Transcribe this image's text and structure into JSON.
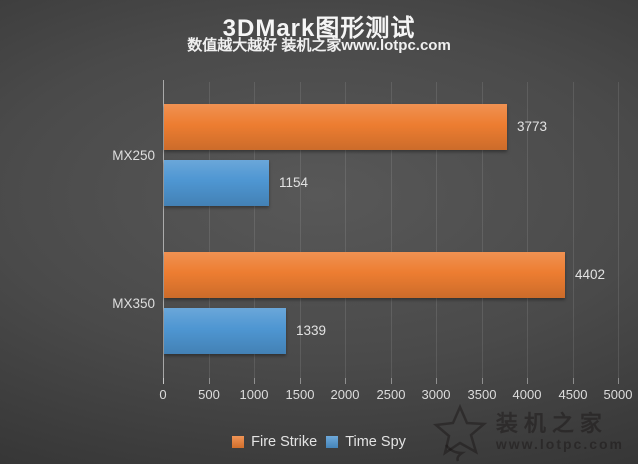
{
  "page": {
    "title": "3DMark图形测试",
    "subtitle": "数值越大越好 装机之家www.lotpc.com"
  },
  "chart_data": {
    "type": "bar",
    "orientation": "horizontal",
    "title": "3DMark图形测试",
    "subtitle": "数值越大越好 装机之家www.lotpc.com",
    "categories": [
      "MX250",
      "MX350"
    ],
    "series": [
      {
        "name": "Fire Strike",
        "color": "#ED7D31",
        "values": [
          3773,
          4402
        ]
      },
      {
        "name": "Time Spy",
        "color": "#4E96D2",
        "values": [
          1154,
          1339
        ]
      }
    ],
    "value_labels_shown": true,
    "xlim": [
      0,
      5000
    ],
    "xticks": [
      0,
      500,
      1000,
      1500,
      2000,
      2500,
      3000,
      3500,
      4000,
      4500,
      5000
    ],
    "grid": true,
    "legend_position": "bottom"
  },
  "colors": {
    "fire_strike": "#ED7D31",
    "time_spy": "#4E96D2",
    "background_center": "#585858",
    "background_edge": "#282828",
    "text_light": "#e3e3e3"
  },
  "watermark": {
    "icon": "star-icon",
    "site_name": "装机之家",
    "site_url": "www.lotpc.com"
  }
}
